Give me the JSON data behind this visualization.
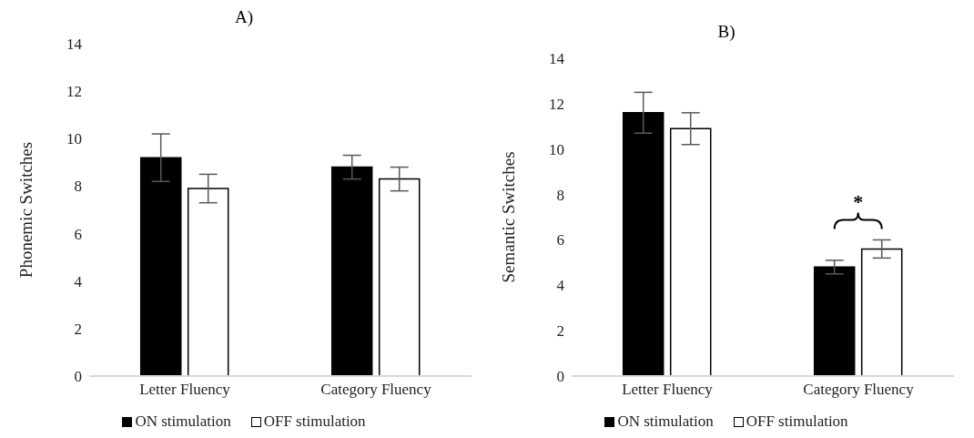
{
  "chart_data": [
    {
      "type": "bar",
      "title": "A)",
      "ylabel": "Phonemic Switches",
      "categories": [
        "Letter Fluency",
        "Category Fluency"
      ],
      "series": [
        {
          "name": "ON stimulation",
          "color": "#000000",
          "values": [
            9.2,
            8.8
          ],
          "errors": [
            1.0,
            0.5
          ]
        },
        {
          "name": "OFF stimulation",
          "color": "#ffffff",
          "values": [
            7.9,
            8.3
          ],
          "errors": [
            0.6,
            0.5
          ]
        }
      ],
      "ylim": [
        0,
        14
      ],
      "yticks": [
        0,
        2,
        4,
        6,
        8,
        10,
        12,
        14
      ],
      "grid": false,
      "legend": "bottom"
    },
    {
      "type": "bar",
      "title": "B)",
      "ylabel": "Semantic Switches",
      "categories": [
        "Letter Fluency",
        "Category Fluency"
      ],
      "series": [
        {
          "name": "ON stimulation",
          "color": "#000000",
          "values": [
            11.6,
            4.8
          ],
          "errors": [
            0.9,
            0.3
          ]
        },
        {
          "name": "OFF stimulation",
          "color": "#ffffff",
          "values": [
            10.9,
            5.6
          ],
          "errors": [
            0.7,
            0.4
          ]
        }
      ],
      "ylim": [
        0,
        14
      ],
      "yticks": [
        0,
        2,
        4,
        6,
        8,
        10,
        12,
        14
      ],
      "grid": false,
      "legend": "bottom",
      "annotations": [
        "*"
      ]
    }
  ]
}
